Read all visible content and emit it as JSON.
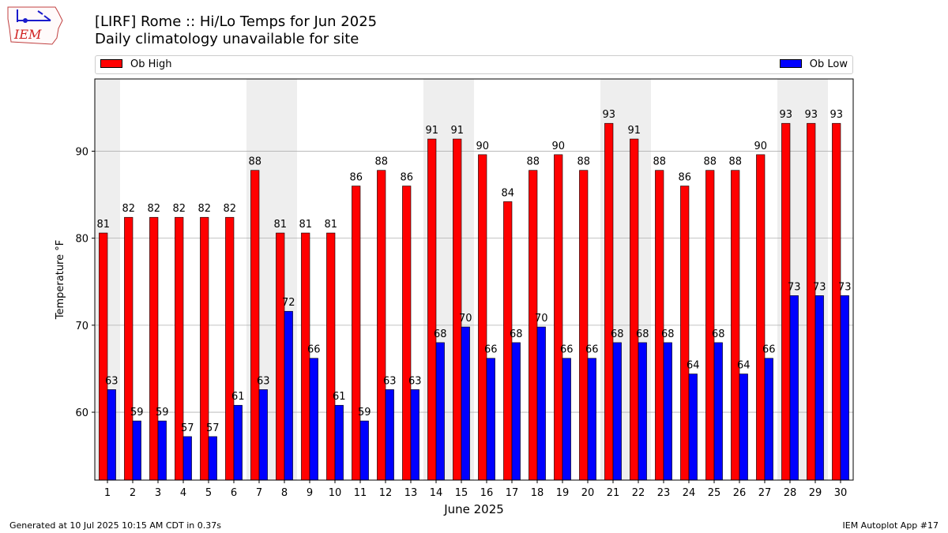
{
  "header": {
    "title": "[LIRF] Rome :: Hi/Lo Temps for Jun 2025",
    "subtitle": "Daily climatology unavailable for site",
    "logo_text": "IEM"
  },
  "footer": {
    "generated": "Generated at 10 Jul 2025 10:15 AM CDT in 0.37s",
    "app": "IEM Autoplot App #17"
  },
  "colors": {
    "high": "#ff0000",
    "low": "#0000ff",
    "weekend_band": "#eeeeee",
    "grid": "#b0b0b0"
  },
  "chart_data": {
    "type": "bar",
    "title": "[LIRF] Rome :: Hi/Lo Temps for Jun 2025",
    "xlabel": "June 2025",
    "ylabel": "Temperature °F",
    "ylim": [
      52.2,
      98.3
    ],
    "yticks": [
      60,
      70,
      80,
      90
    ],
    "grid": true,
    "legend_position": "top",
    "categories": [
      "1",
      "2",
      "3",
      "4",
      "5",
      "6",
      "7",
      "8",
      "9",
      "10",
      "11",
      "12",
      "13",
      "14",
      "15",
      "16",
      "17",
      "18",
      "19",
      "20",
      "21",
      "22",
      "23",
      "24",
      "25",
      "26",
      "27",
      "28",
      "29",
      "30"
    ],
    "series": [
      {
        "name": "Ob High",
        "color": "#ff0000",
        "values": [
          80.6,
          82.4,
          82.4,
          82.4,
          82.4,
          82.4,
          87.8,
          80.6,
          80.6,
          80.6,
          86.0,
          87.8,
          86.0,
          91.4,
          91.4,
          89.6,
          84.2,
          87.8,
          89.6,
          87.8,
          93.2,
          91.4,
          87.8,
          86.0,
          87.8,
          87.8,
          89.6,
          93.2,
          93.2,
          93.2
        ],
        "labels": [
          "81",
          "82",
          "82",
          "82",
          "82",
          "82",
          "88",
          "81",
          "81",
          "81",
          "86",
          "88",
          "86",
          "91",
          "91",
          "90",
          "84",
          "88",
          "90",
          "88",
          "93",
          "91",
          "88",
          "86",
          "88",
          "88",
          "90",
          "93",
          "93",
          "93"
        ]
      },
      {
        "name": "Ob Low",
        "color": "#0000ff",
        "values": [
          62.6,
          59.0,
          59.0,
          57.2,
          57.2,
          60.8,
          62.6,
          71.6,
          66.2,
          60.8,
          59.0,
          62.6,
          62.6,
          68.0,
          69.8,
          66.2,
          68.0,
          69.8,
          66.2,
          66.2,
          68.0,
          68.0,
          68.0,
          64.4,
          68.0,
          64.4,
          66.2,
          73.4,
          73.4,
          73.4
        ],
        "labels": [
          "63",
          "59",
          "59",
          "57",
          "57",
          "61",
          "63",
          "72",
          "66",
          "61",
          "59",
          "63",
          "63",
          "68",
          "70",
          "66",
          "68",
          "70",
          "66",
          "66",
          "68",
          "68",
          "68",
          "64",
          "68",
          "64",
          "66",
          "73",
          "73",
          "73"
        ]
      }
    ],
    "weekend_days": [
      "1",
      "7",
      "8",
      "14",
      "15",
      "21",
      "22",
      "28",
      "29"
    ]
  }
}
